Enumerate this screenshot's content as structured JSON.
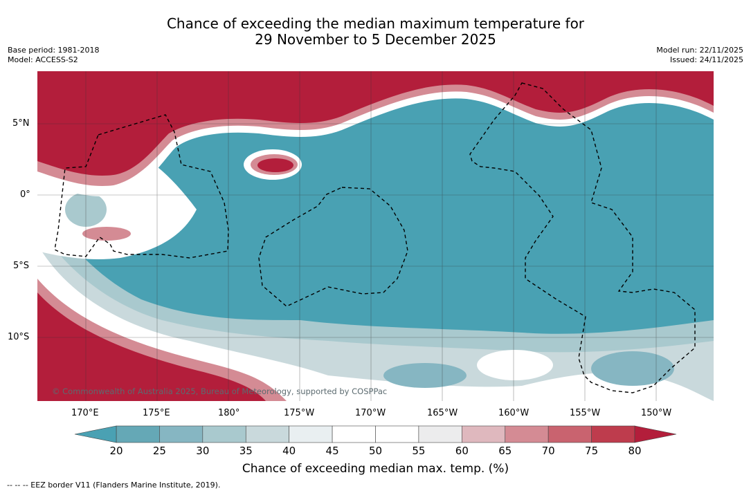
{
  "title_line1": "Chance of exceeding the median maximum temperature for",
  "title_line2": "29 November to 5 December 2025",
  "base_period": "Base period: 1981-2018",
  "model": "Model: ACCESS-S2",
  "model_run": "Model run: 22/11/2025",
  "issued": "Issued: 24/11/2025",
  "lat_ticks": [
    "5°N",
    "0°",
    "5°S",
    "10°S"
  ],
  "lon_ticks": [
    "170°E",
    "175°E",
    "180°",
    "175°W",
    "170°W",
    "165°W",
    "160°W",
    "155°W",
    "150°W"
  ],
  "copyright": "© Commonwealth of Australia 2025, Bureau of Meteorology, supported by COSPPac",
  "colorbar": {
    "labels": [
      "20",
      "25",
      "30",
      "35",
      "40",
      "45",
      "50",
      "55",
      "60",
      "65",
      "70",
      "75",
      "80"
    ],
    "colors": [
      "#65a8b6",
      "#86b6c2",
      "#a9c9ce",
      "#c9d9dc",
      "#e9eff1",
      "#ffffff",
      "#ffffff",
      "#ececed",
      "#dfb8be",
      "#d48b94",
      "#c9636f",
      "#be3c4d"
    ],
    "low_color": "#4aa1b3",
    "high_color": "#b31e3b",
    "title": "Chance of exceeding median max. temp. (%)"
  },
  "legend_note": "--  --  -- EEZ border V11 (Flanders Marine Institute, 2019).",
  "colors": {
    "teal": "#49a1b3",
    "red": "#b31e3b",
    "white": "#ffffff"
  }
}
